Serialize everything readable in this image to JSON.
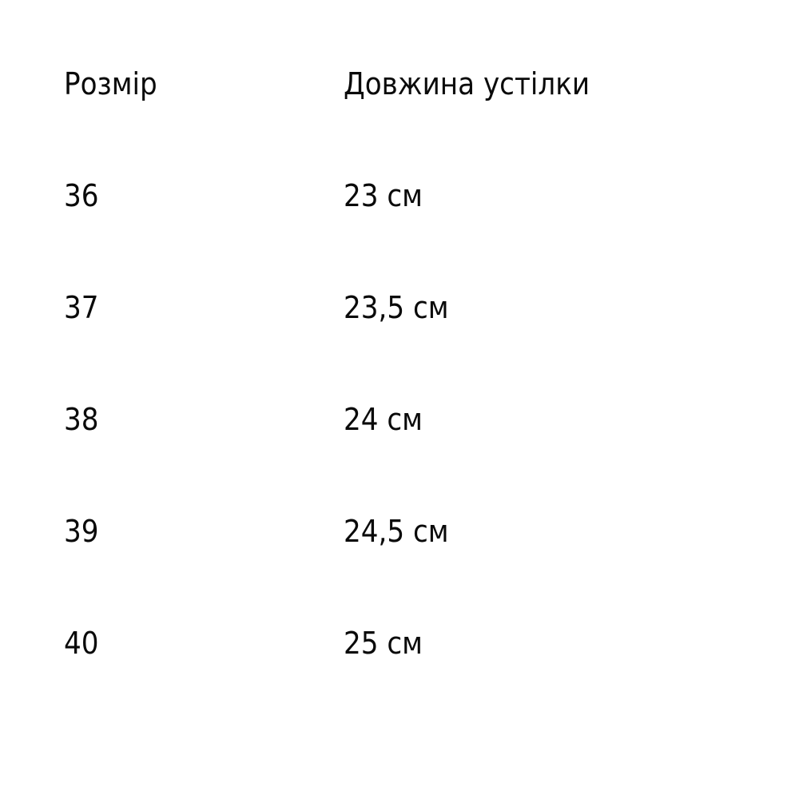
{
  "table": {
    "headers": {
      "size": "Розмір",
      "length": "Довжина устілки"
    },
    "rows": [
      {
        "size": "36",
        "length": "23 см"
      },
      {
        "size": "37",
        "length": "23,5 см"
      },
      {
        "size": "38",
        "length": "24 см"
      },
      {
        "size": "39",
        "length": "24,5 см"
      },
      {
        "size": "40",
        "length": "25 см"
      }
    ]
  },
  "colors": {
    "background": "#ffffff",
    "text": "#0a0a0a"
  },
  "chart_data": {
    "type": "table",
    "title": "",
    "columns": [
      "Розмір",
      "Довжина устілки"
    ],
    "rows": [
      [
        "36",
        "23 см"
      ],
      [
        "37",
        "23,5 см"
      ],
      [
        "38",
        "24 см"
      ],
      [
        "39",
        "24,5 см"
      ],
      [
        "40",
        "25 см"
      ]
    ],
    "size_values": [
      36,
      37,
      38,
      39,
      40
    ],
    "insole_length_cm": [
      23,
      23.5,
      24,
      24.5,
      25
    ]
  }
}
